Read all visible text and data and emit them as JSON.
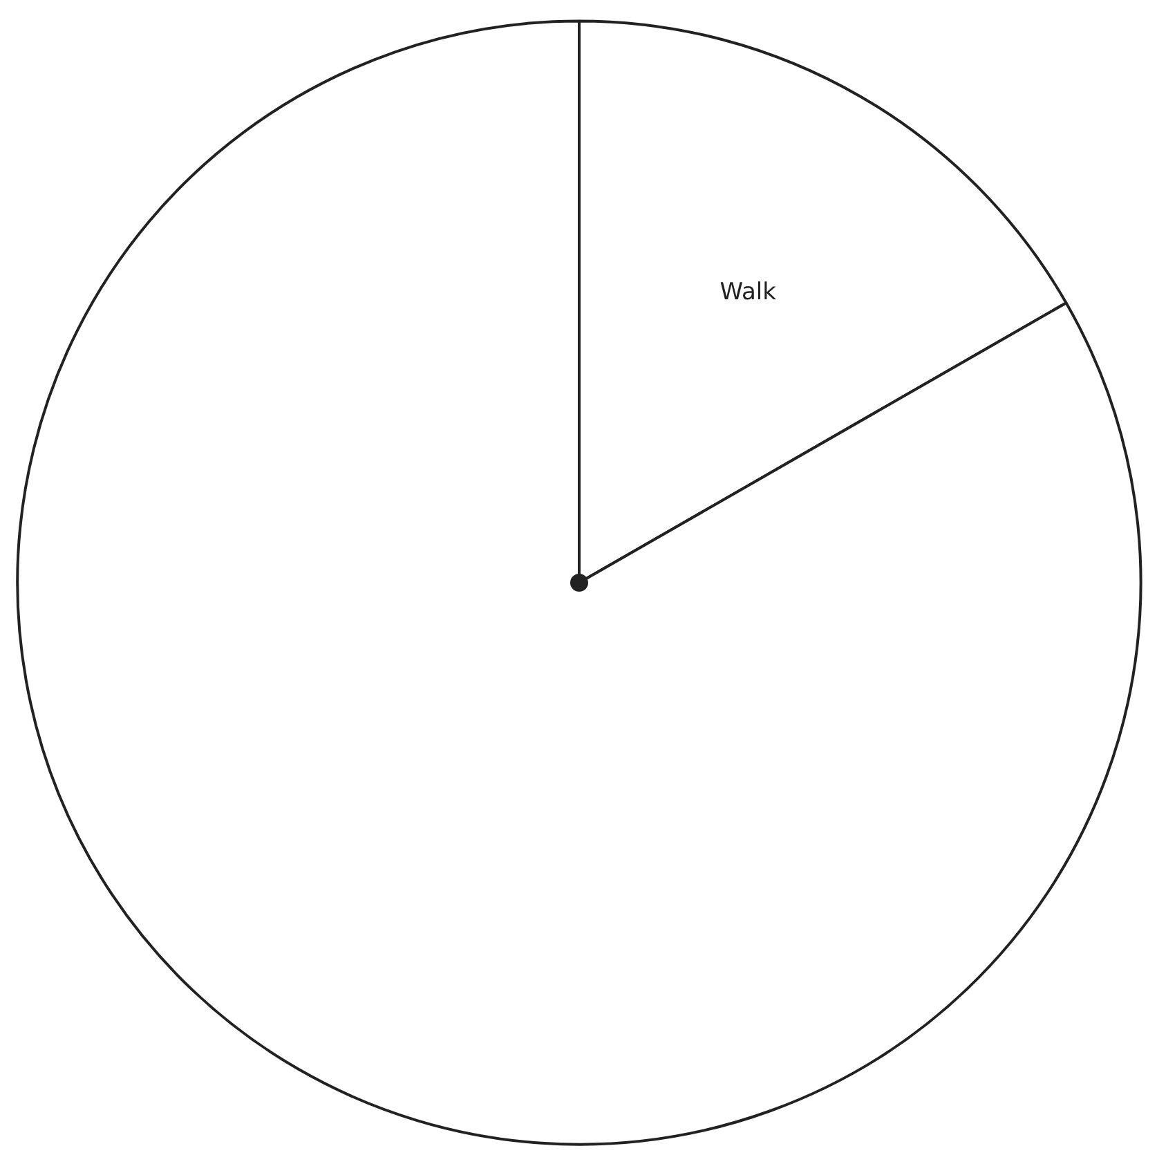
{
  "chart_data": {
    "type": "pie",
    "categories": [
      "Walk",
      null
    ],
    "values": [
      16.7,
      83.3
    ],
    "colors": [
      "#ffffff",
      "#ffffff"
    ]
  }
}
